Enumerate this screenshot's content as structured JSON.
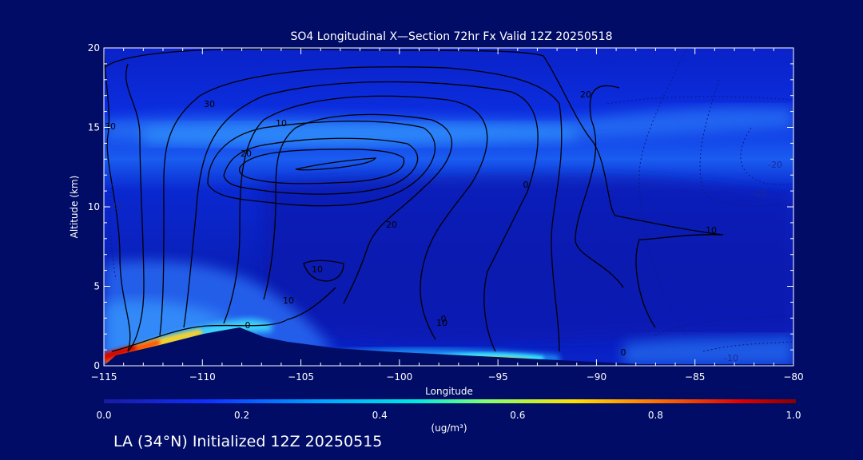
{
  "chart_data": {
    "type": "heatmap",
    "title": "SO4 Longitudinal X—Section 72hr  Fx Valid 12Z 20250518",
    "xlabel": "Longitude",
    "ylabel": "Altitude (km)",
    "xlim": [
      -115,
      -80
    ],
    "ylim": [
      0,
      20
    ],
    "xticks": [
      "−115",
      "−110",
      "−105",
      "−100",
      "−95",
      "−90",
      "−85",
      "−80"
    ],
    "yticks": [
      "0",
      "5",
      "10",
      "15",
      "20"
    ],
    "colorbar": {
      "ticks": [
        "0.0",
        "0.2",
        "0.4",
        "0.6",
        "0.8",
        "1.0"
      ],
      "range": [
        0.0,
        1.0
      ],
      "unit": "(ug/m³)",
      "colormap": "rainbow",
      "low_color": "#0a1fd8",
      "high_color": "#8a0000"
    },
    "contour_labels": [
      "0",
      "10",
      "20",
      "20",
      "10",
      "30",
      "30",
      "20",
      "10",
      "0",
      "0",
      "10",
      "-20",
      "-10",
      "-10",
      "10",
      "-10",
      "0"
    ],
    "grid": false
  },
  "footer": {
    "text": "LA (34°N) Initialized 12Z 20250515"
  }
}
